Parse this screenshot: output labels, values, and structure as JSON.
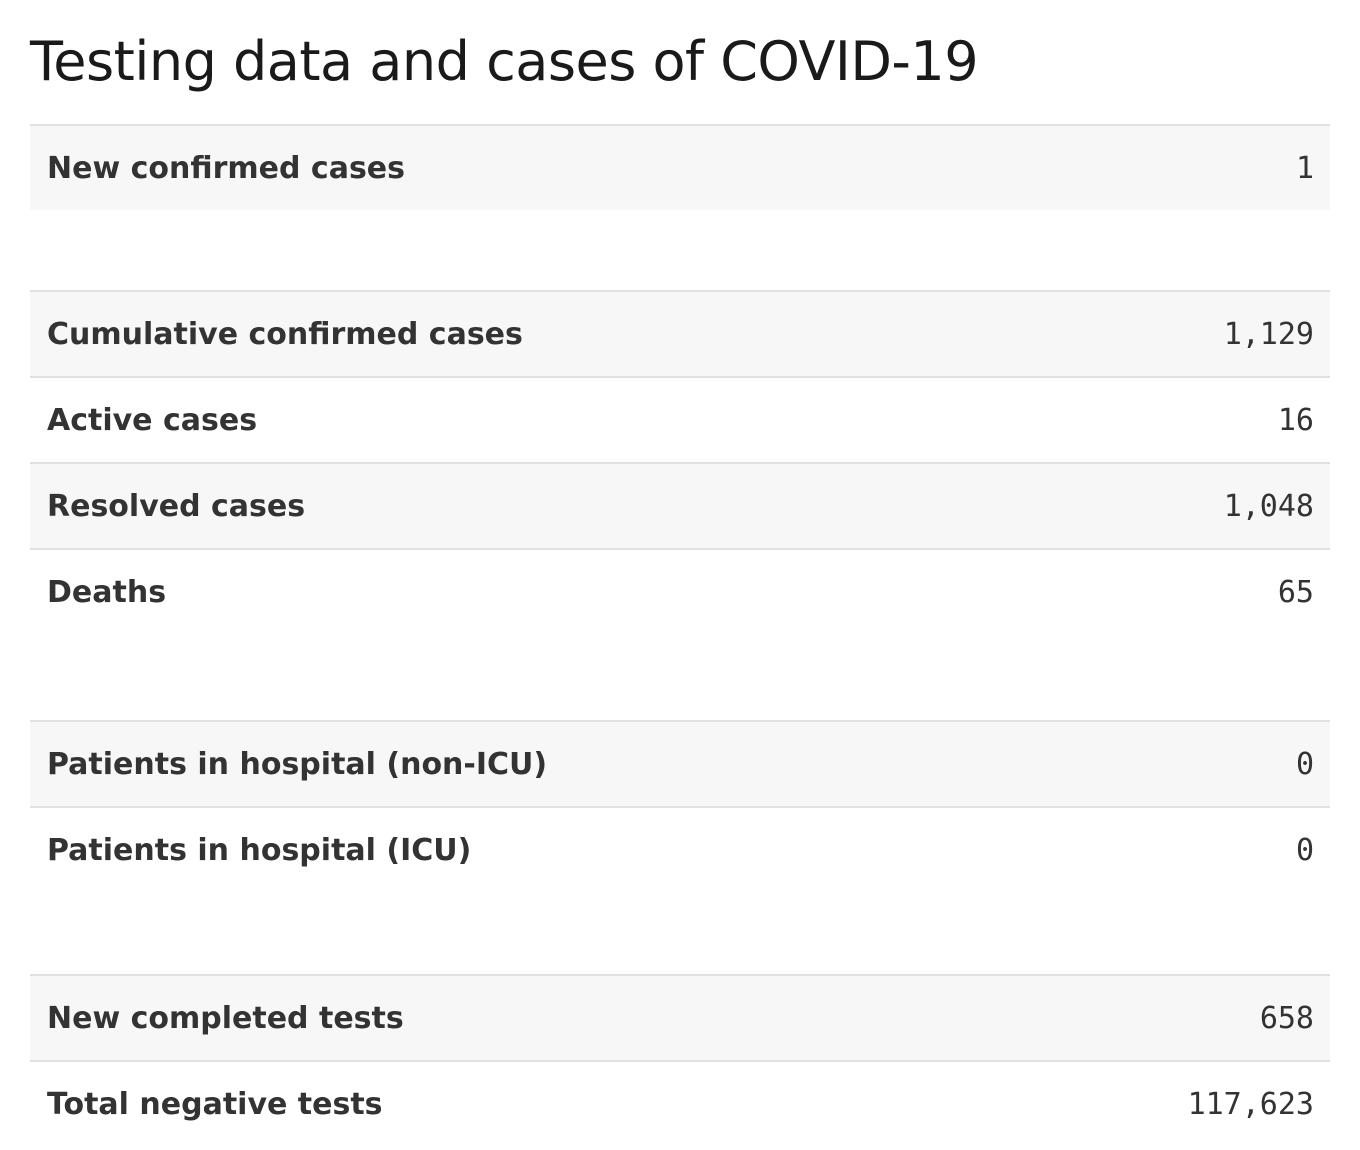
{
  "title": "Testing data and cases of COVID-19",
  "groups": [
    {
      "rows": [
        {
          "label": "New confirmed cases",
          "value": "1"
        }
      ]
    },
    {
      "rows": [
        {
          "label": "Cumulative confirmed cases",
          "value": "1,129"
        },
        {
          "label": "Active cases",
          "value": "16"
        },
        {
          "label": "Resolved cases",
          "value": "1,048"
        },
        {
          "label": "Deaths",
          "value": "65"
        }
      ]
    },
    {
      "rows": [
        {
          "label": "Patients in hospital (non-ICU)",
          "value": "0"
        },
        {
          "label": "Patients in hospital (ICU)",
          "value": "0"
        }
      ]
    },
    {
      "rows": [
        {
          "label": "New completed tests",
          "value": "658"
        },
        {
          "label": "Total negative tests",
          "value": "117,623"
        }
      ]
    }
  ]
}
